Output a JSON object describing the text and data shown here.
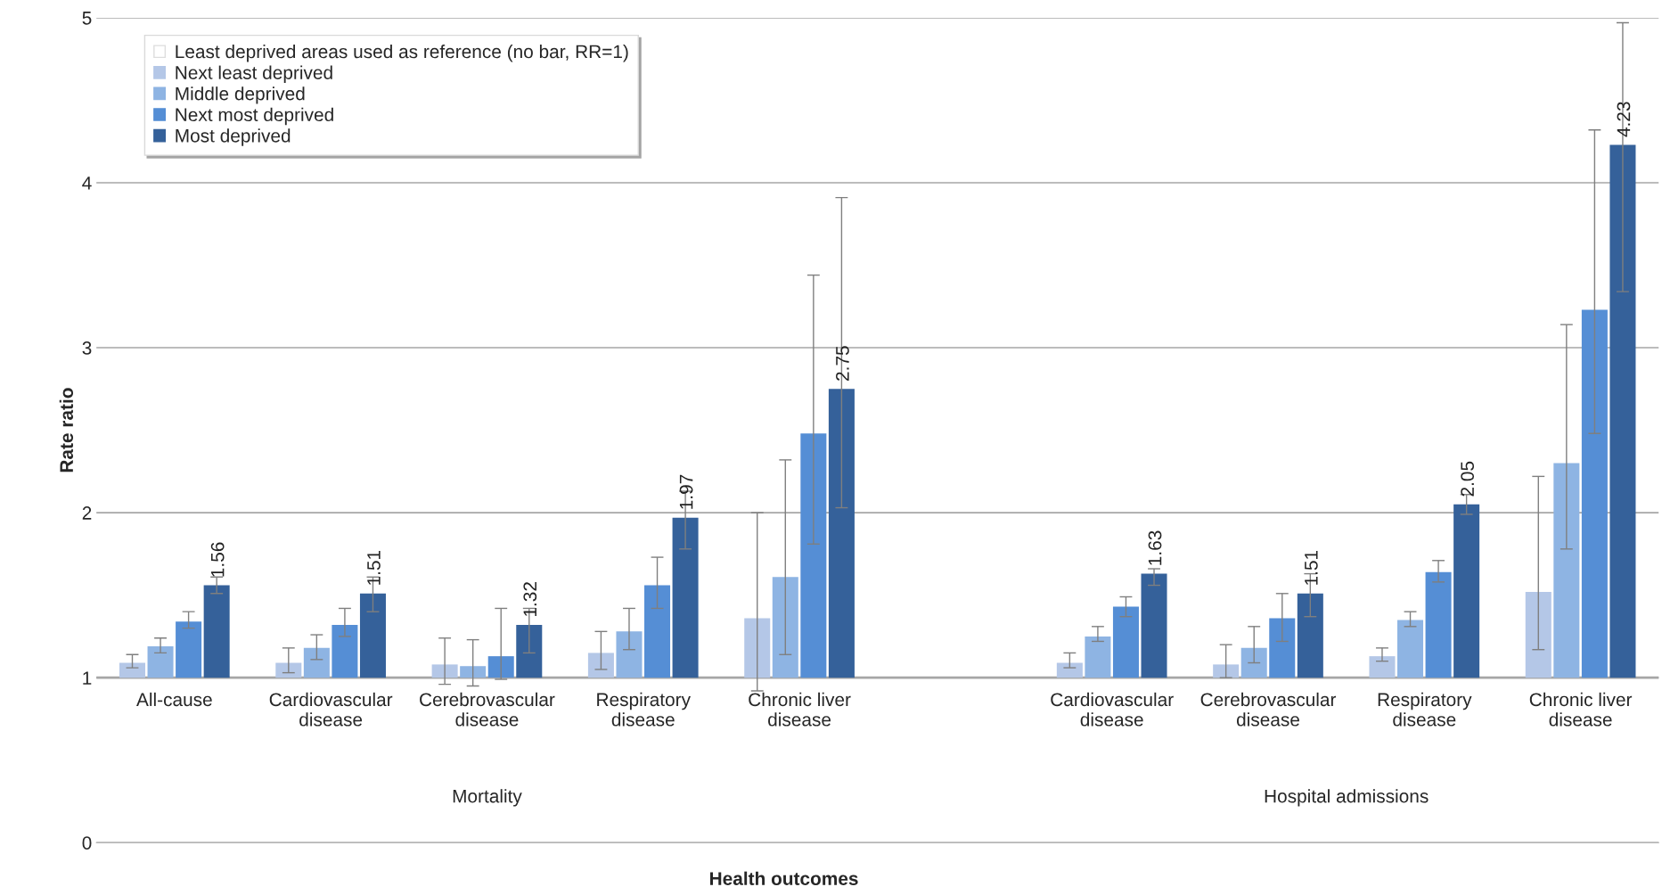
{
  "chart_data": {
    "type": "bar",
    "xlabel": "Health outcomes",
    "ylabel": "Rate ratio",
    "categories": [
      "All-cause",
      "Cardiovascular\ndisease",
      "Cerebrovascular\ndisease",
      "Respiratory\ndisease",
      "Chronic liver\ndisease",
      null,
      "Cardiovascular\ndisease",
      "Cerebrovascular\ndisease",
      "Respiratory\ndisease",
      "Chronic liver\ndisease"
    ],
    "series": [
      {
        "name": "Least deprived areas used as reference (no bar, RR=1)",
        "color": "#ffffff",
        "values": [
          null,
          null,
          null,
          null,
          null,
          null,
          null,
          null,
          null,
          null
        ]
      },
      {
        "name": "Next least deprived",
        "color": "#b4c7e7",
        "base": [
          1,
          1,
          1,
          1,
          1,
          null,
          1,
          1,
          1,
          1
        ],
        "values": [
          0.09,
          0.09,
          0.08,
          0.15,
          0.36,
          null,
          0.09,
          0.08,
          0.13,
          0.52
        ],
        "errors": [
          [
            1.06,
            1.14
          ],
          [
            1.03,
            1.18
          ],
          [
            0.96,
            1.24
          ],
          [
            1.05,
            1.28
          ],
          [
            0.92,
            2.0
          ],
          null,
          [
            1.06,
            1.15
          ],
          [
            1.0,
            1.2
          ],
          [
            1.1,
            1.18
          ],
          [
            1.17,
            2.22
          ]
        ]
      },
      {
        "name": "Middle deprived",
        "color": "#8eb4e3",
        "base": [
          1,
          1,
          1,
          1,
          1,
          null,
          1,
          1,
          1,
          1
        ],
        "values": [
          0.19,
          0.18,
          0.07,
          0.28,
          0.61,
          null,
          0.25,
          0.18,
          0.35,
          1.3
        ],
        "errors": [
          [
            1.15,
            1.24
          ],
          [
            1.11,
            1.26
          ],
          [
            0.95,
            1.23
          ],
          [
            1.17,
            1.42
          ],
          [
            1.14,
            2.32
          ],
          null,
          [
            1.22,
            1.31
          ],
          [
            1.09,
            1.31
          ],
          [
            1.31,
            1.4
          ],
          [
            1.78,
            3.14
          ]
        ]
      },
      {
        "name": "Next most deprived",
        "color": "#558ed5",
        "base": [
          1,
          1,
          1,
          1,
          1,
          null,
          1,
          1,
          1,
          1
        ],
        "values": [
          0.34,
          0.32,
          0.13,
          0.56,
          1.48,
          null,
          0.43,
          0.36,
          0.64,
          2.23
        ],
        "errors": [
          [
            1.3,
            1.4
          ],
          [
            1.25,
            1.42
          ],
          [
            0.99,
            1.42
          ],
          [
            1.42,
            1.73
          ],
          [
            1.81,
            3.44
          ],
          null,
          [
            1.37,
            1.49
          ],
          [
            1.22,
            1.51
          ],
          [
            1.58,
            1.71
          ],
          [
            2.48,
            4.32
          ]
        ]
      },
      {
        "name": "Most deprived",
        "color": "#35619a",
        "base": [
          1,
          1,
          1,
          1,
          1,
          null,
          1,
          1,
          1,
          1
        ],
        "values": [
          0.56,
          0.51,
          0.32,
          0.97,
          1.75,
          null,
          0.63,
          0.51,
          1.05,
          3.23
        ],
        "errors": [
          [
            1.51,
            1.61
          ],
          [
            1.4,
            1.61
          ],
          [
            1.15,
            1.42
          ],
          [
            1.78,
            2.13
          ],
          [
            2.03,
            3.91
          ],
          null,
          [
            1.56,
            1.66
          ],
          [
            1.37,
            1.63
          ],
          [
            1.99,
            2.11
          ],
          [
            3.34,
            4.97
          ]
        ],
        "value_labels": [
          "1.56",
          "1.51",
          "1.32",
          "1.97",
          "2.75",
          null,
          "1.63",
          "1.51",
          "2.05",
          "4.23"
        ]
      }
    ],
    "ylim": [
      0,
      5
    ],
    "yticks": [
      0,
      1,
      2,
      3,
      4,
      5
    ],
    "grid": "y",
    "legend": "top left",
    "annotations": [
      "Mortality",
      "Hospital admissions"
    ]
  }
}
